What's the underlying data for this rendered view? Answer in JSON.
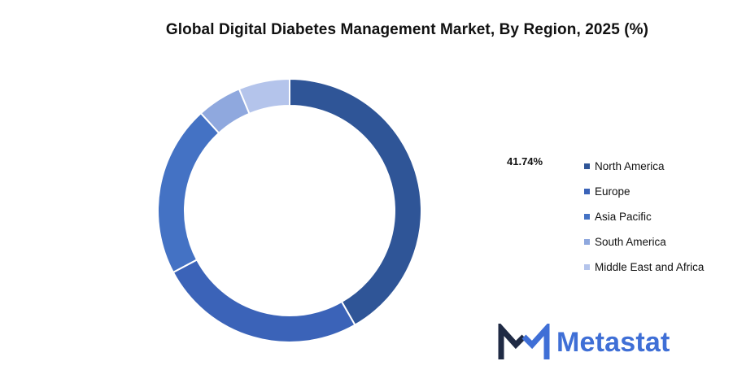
{
  "chart_data": {
    "type": "pie",
    "title": "Global Digital Diabetes Management Market, By Region, 2025 (%)",
    "highlight_label": "41.74%",
    "categories": [
      "North America",
      "Europe",
      "Asia Pacific",
      "South America",
      "Middle East and Africa"
    ],
    "values": [
      41.74,
      25.5,
      21.0,
      5.5,
      6.26
    ],
    "colors": [
      "#2f5597",
      "#3b63b8",
      "#4472c4",
      "#8fa8de",
      "#b4c4eb"
    ],
    "legend_position": "right"
  },
  "brand": {
    "name": "Metastat",
    "text_color": "#3f6fd6",
    "mark_color": "#1f2a44"
  }
}
